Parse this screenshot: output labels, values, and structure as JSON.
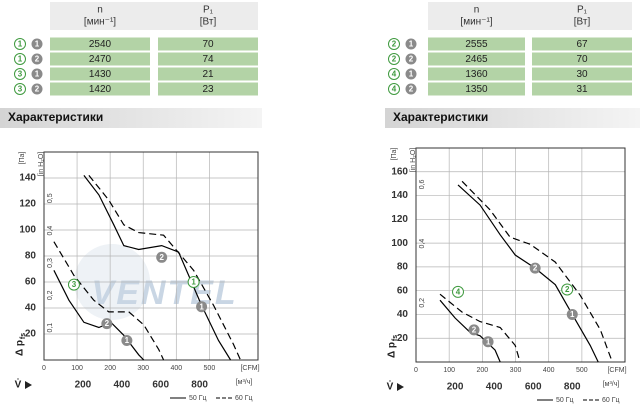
{
  "tables": [
    {
      "header": {
        "n": "n",
        "n_unit": "[мин⁻¹]",
        "p": "P₁",
        "p_unit": "[Вт]"
      },
      "rows": [
        {
          "mark": "1",
          "connection": "1",
          "n": 2540,
          "p": 70
        },
        {
          "mark": "1",
          "connection": "2",
          "n": 2470,
          "p": 74
        },
        {
          "mark": "3",
          "connection": "1",
          "n": 1430,
          "p": 21
        },
        {
          "mark": "3",
          "connection": "2",
          "n": 1420,
          "p": 23
        }
      ]
    },
    {
      "header": {
        "n": "n",
        "n_unit": "[мин⁻¹]",
        "p": "P₁",
        "p_unit": "[Вт]"
      },
      "rows": [
        {
          "mark": "2",
          "connection": "1",
          "n": 2555,
          "p": 67
        },
        {
          "mark": "2",
          "connection": "2",
          "n": 2465,
          "p": 70
        },
        {
          "mark": "4",
          "connection": "1",
          "n": 1360,
          "p": 30
        },
        {
          "mark": "4",
          "connection": "2",
          "n": 1350,
          "p": 31
        }
      ]
    }
  ],
  "headings": [
    "Характеристики",
    "Характеристики"
  ],
  "chart_data": [
    {
      "type": "line",
      "watermark": "VENTEL",
      "xlim": [
        0,
        1100
      ],
      "xticks": [
        200,
        400,
        600,
        800
      ],
      "x_label": "[м³/ч]",
      "x2lim": [
        0,
        647
      ],
      "x2ticks": [
        0,
        100,
        200,
        300,
        400,
        500
      ],
      "x2_label": "[CFM]",
      "ylim": [
        0,
        160
      ],
      "yticks": [
        20,
        40,
        60,
        80,
        100,
        120,
        140
      ],
      "y_label": "[Па]",
      "y2lim": [
        0,
        0.643
      ],
      "y2ticks": [
        {
          "value": 0.1,
          "label": "0,1"
        },
        {
          "value": 0.2,
          "label": "0,2"
        },
        {
          "value": 0.3,
          "label": "0,3"
        },
        {
          "value": 0.4,
          "label": "0,4"
        },
        {
          "value": 0.5,
          "label": "0,5"
        }
      ],
      "y2_label": "[in H₂O]",
      "y_title": "Δ p",
      "y_title_sub": "fs",
      "x_title": "V̇",
      "grid": true,
      "legend": [
        {
          "label": "50 Гц",
          "style": "solid"
        },
        {
          "label": "60 Гц",
          "style": "dashed"
        }
      ],
      "series": [
        {
          "style": "solid",
          "color": "#000000",
          "x": [
            205,
            282,
            359,
            410,
            487,
            605,
            692,
            810,
            897,
            959
          ],
          "values": [
            142,
            127,
            104,
            88,
            85,
            88,
            83,
            42,
            15,
            0
          ]
        },
        {
          "style": "dashed",
          "color": "#000000",
          "x": [
            231,
            333,
            410,
            487,
            615,
            769,
            872,
            974,
            1010
          ],
          "values": [
            142,
            123,
            104,
            98,
            96,
            69,
            42,
            12,
            0
          ]
        },
        {
          "style": "solid",
          "color": "#000000",
          "x": [
            51,
            128,
            205,
            282,
            344,
            410,
            487,
            513
          ],
          "values": [
            69,
            46,
            29,
            25,
            29,
            19,
            4,
            0
          ]
        },
        {
          "style": "dashed",
          "color": "#000000",
          "x": [
            51,
            154,
            256,
            333,
            436,
            513,
            590,
            615
          ],
          "values": [
            91,
            65,
            46,
            37,
            37,
            27,
            8,
            0
          ]
        }
      ],
      "annotations": [
        {
          "text": "2",
          "kind": "gray",
          "x": 605,
          "y": 79
        },
        {
          "text": "1",
          "kind": "gray",
          "x": 810,
          "y": 41
        },
        {
          "text": "1",
          "kind": "green",
          "x": 769,
          "y": 60
        },
        {
          "text": "2",
          "kind": "gray",
          "x": 323,
          "y": 28
        },
        {
          "text": "1",
          "kind": "gray",
          "x": 426,
          "y": 15
        },
        {
          "text": "3",
          "kind": "green",
          "x": 154,
          "y": 58
        }
      ]
    },
    {
      "type": "line",
      "xlim": [
        0,
        1070
      ],
      "xticks": [
        200,
        400,
        600,
        800
      ],
      "x_label": "[м³/ч]",
      "x2lim": [
        0,
        630
      ],
      "x2ticks": [
        0,
        100,
        200,
        300,
        400,
        500
      ],
      "x2_label": "[CFM]",
      "ylim": [
        0,
        180
      ],
      "yticks": [
        20,
        40,
        60,
        80,
        100,
        120,
        140,
        160
      ],
      "y_label": "[Па]",
      "y2lim": [
        0,
        0.723
      ],
      "y2ticks": [
        {
          "value": 0.2,
          "label": "0,2"
        },
        {
          "value": 0.4,
          "label": "0,4"
        },
        {
          "value": 0.6,
          "label": "0,6"
        }
      ],
      "y2_label": "[in H₂O]",
      "y_title": "Δ p",
      "y_title_sub": "fs",
      "x_title": "V̇",
      "grid": true,
      "legend": [
        {
          "label": "50 Гц",
          "style": "solid"
        },
        {
          "label": "60 Гц",
          "style": "dashed"
        }
      ],
      "series": [
        {
          "style": "solid",
          "color": "#000000",
          "x": [
            215,
            328,
            431,
            508,
            610,
            713,
            800,
            892,
            933
          ],
          "values": [
            149,
            132,
            107,
            90,
            79,
            65,
            40,
            14,
            0
          ]
        },
        {
          "style": "dashed",
          "color": "#000000",
          "x": [
            236,
            379,
            482,
            585,
            713,
            841,
            944,
            1005
          ],
          "values": [
            152,
            128,
            105,
            99,
            84,
            56,
            27,
            0
          ]
        },
        {
          "style": "solid",
          "color": "#000000",
          "x": [
            123,
            200,
            277,
            328,
            405,
            431
          ],
          "values": [
            52,
            37,
            25,
            22,
            10,
            0
          ]
        },
        {
          "style": "dashed",
          "color": "#000000",
          "x": [
            123,
            236,
            328,
            431,
            508,
            533
          ],
          "values": [
            57,
            42,
            34,
            29,
            14,
            0
          ]
        }
      ],
      "annotations": [
        {
          "text": "2",
          "kind": "gray",
          "x": 610,
          "y": 79
        },
        {
          "text": "1",
          "kind": "gray",
          "x": 800,
          "y": 40
        },
        {
          "text": "2",
          "kind": "green",
          "x": 774,
          "y": 61
        },
        {
          "text": "2",
          "kind": "gray",
          "x": 297,
          "y": 27
        },
        {
          "text": "1",
          "kind": "gray",
          "x": 369,
          "y": 17
        },
        {
          "text": "4",
          "kind": "green",
          "x": 215,
          "y": 59
        }
      ]
    }
  ]
}
